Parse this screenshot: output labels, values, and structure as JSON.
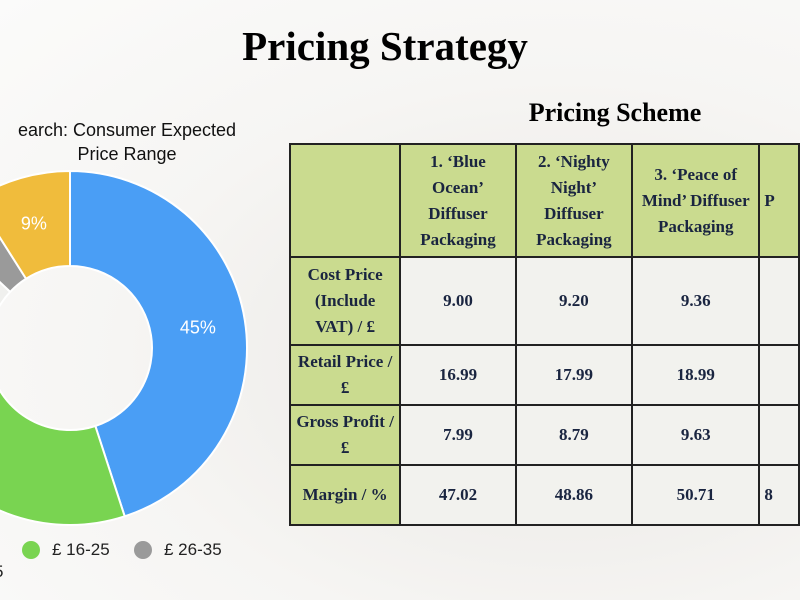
{
  "slide": {
    "title": "Pricing Strategy"
  },
  "chart_data": {
    "type": "pie",
    "title_lines": [
      "earch: Consumer Expected",
      "Price Range"
    ],
    "slices": [
      {
        "label": "",
        "value": 45,
        "display": "45%",
        "color": "#4a9ef5"
      },
      {
        "label": "£ 16-25",
        "value": 26,
        "display": "",
        "color": "#79d451"
      },
      {
        "label": "5",
        "value": 16,
        "display": "",
        "color": "#f0f0ee"
      },
      {
        "label": "£ 26-35",
        "value": 4,
        "display": "",
        "color": "#9a9a9a"
      },
      {
        "label": "",
        "value": 9,
        "display": "9%",
        "color": "#f0bc3c"
      }
    ],
    "legend": {
      "items": [
        {
          "label": "£ 16-25",
          "color": "#79d451"
        },
        {
          "label": "£ 26-35",
          "color": "#9a9a9a"
        }
      ],
      "cut_label": "5"
    }
  },
  "pricing": {
    "title": "Pricing Scheme",
    "columns": [
      "",
      "1. ‘Blue Ocean’ Diffuser Packaging",
      "2. ‘Nighty Night’ Diffuser Packaging",
      "3. ‘Peace of Mind’ Diffuser Packaging",
      "P"
    ],
    "rows": [
      {
        "label": "Cost Price (Include VAT) / £",
        "values": [
          "9.00",
          "9.20",
          "9.36",
          ""
        ]
      },
      {
        "label": "Retail Price / £",
        "values": [
          "16.99",
          "17.99",
          "18.99",
          ""
        ]
      },
      {
        "label": "Gross Profit / £",
        "values": [
          "7.99",
          "8.79",
          "9.63",
          ""
        ]
      },
      {
        "label": "Margin / %",
        "values": [
          "47.02",
          "48.86",
          "50.71",
          "8"
        ]
      }
    ]
  }
}
